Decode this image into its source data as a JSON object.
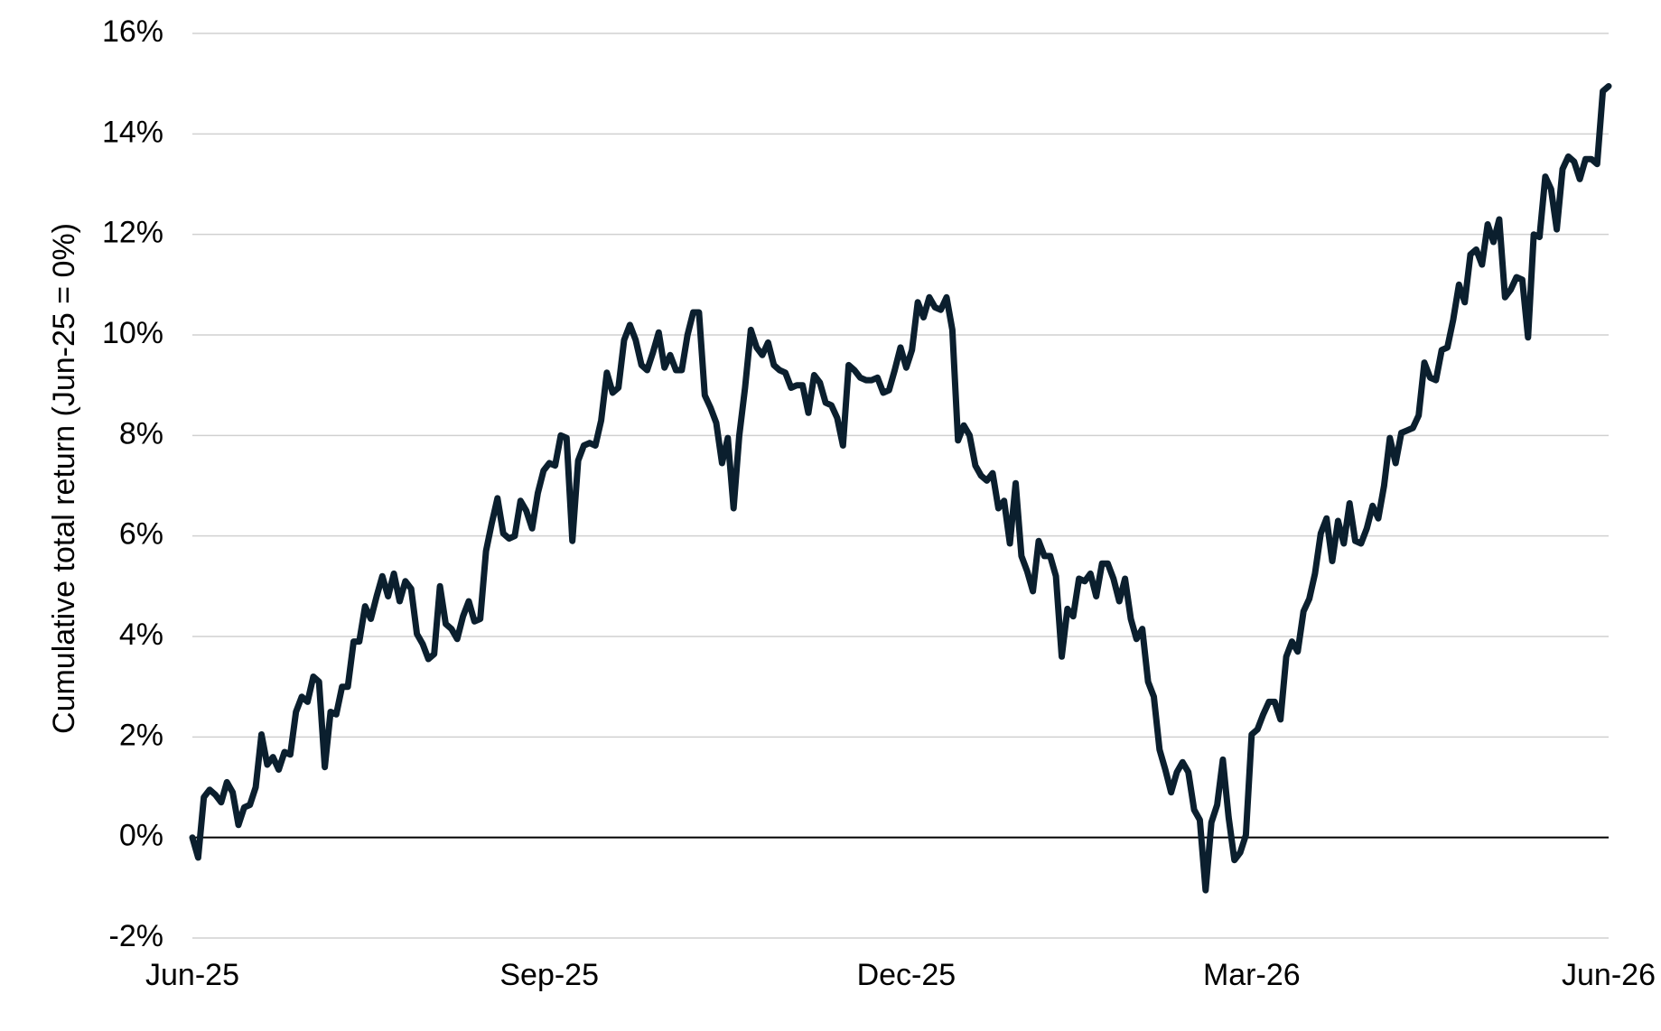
{
  "chart_data": {
    "type": "line",
    "y_label": "Cumulative total return (Jun-25 = 0%)",
    "x": [
      "Jun-25",
      null,
      null,
      null,
      null,
      null,
      null,
      null,
      null,
      null,
      null,
      null,
      null,
      null,
      null,
      null,
      null,
      null,
      null,
      null,
      null,
      null,
      null,
      null,
      null,
      null,
      null,
      null,
      null,
      null,
      null,
      null,
      null,
      null,
      null,
      null,
      null,
      null,
      null,
      null,
      null,
      null,
      null,
      null,
      null,
      null,
      null,
      null,
      null,
      null,
      null,
      null,
      null,
      null,
      null,
      null,
      null,
      null,
      null,
      null,
      null,
      null,
      "Sep-25",
      null,
      null,
      null,
      null,
      null,
      null,
      null,
      null,
      null,
      null,
      null,
      null,
      null,
      null,
      null,
      null,
      null,
      null,
      null,
      null,
      null,
      null,
      null,
      null,
      null,
      null,
      null,
      null,
      null,
      null,
      null,
      null,
      null,
      null,
      null,
      null,
      null,
      null,
      null,
      null,
      null,
      null,
      null,
      null,
      null,
      null,
      null,
      null,
      null,
      null,
      null,
      null,
      null,
      null,
      null,
      null,
      null,
      null,
      null,
      null,
      null,
      "Dec-25",
      null,
      null,
      null,
      null,
      null,
      null,
      null,
      null,
      null,
      null,
      null,
      null,
      null,
      null,
      null,
      null,
      null,
      null,
      null,
      null,
      null,
      null,
      null,
      null,
      null,
      null,
      null,
      null,
      null,
      null,
      null,
      null,
      null,
      null,
      null,
      null,
      null,
      null,
      null,
      null,
      null,
      null,
      null,
      null,
      null,
      null,
      null,
      null,
      null,
      null,
      null,
      null,
      null,
      null,
      null,
      null,
      null,
      null,
      null,
      "Mar-26",
      null,
      null,
      null,
      null,
      null,
      null,
      null,
      null,
      null,
      null,
      null,
      null,
      null,
      null,
      null,
      null,
      null,
      null,
      null,
      null,
      null,
      null,
      null,
      null,
      null,
      null,
      null,
      null,
      null,
      null,
      null,
      null,
      null,
      null,
      null,
      null,
      null,
      null,
      null,
      null,
      null,
      null,
      null,
      null,
      null,
      null,
      null,
      null,
      null,
      null,
      null,
      null,
      null,
      null,
      null,
      null,
      null,
      null,
      null,
      null,
      null,
      "Jun-26"
    ],
    "series": [
      {
        "name": "Cumulative total return",
        "color": "#0b1f2e",
        "values": [
          0,
          -0.4,
          0.8,
          0.95,
          0.85,
          0.7,
          1.1,
          0.9,
          0.25,
          0.6,
          0.65,
          1.0,
          2.05,
          1.45,
          1.6,
          1.35,
          1.7,
          1.65,
          2.5,
          2.8,
          2.7,
          3.2,
          3.1,
          1.4,
          2.5,
          2.45,
          3.0,
          3.0,
          3.9,
          3.9,
          4.6,
          4.35,
          4.8,
          5.2,
          4.8,
          5.25,
          4.7,
          5.1,
          4.95,
          4.05,
          3.85,
          3.55,
          3.65,
          5.0,
          4.25,
          4.15,
          3.95,
          4.4,
          4.7,
          4.3,
          4.35,
          5.7,
          6.25,
          6.75,
          6.05,
          5.95,
          6.0,
          6.7,
          6.5,
          6.15,
          6.85,
          7.3,
          7.45,
          7.4,
          8.0,
          7.95,
          5.9,
          7.5,
          7.8,
          7.85,
          7.8,
          8.3,
          9.25,
          8.85,
          8.95,
          9.9,
          10.2,
          9.9,
          9.4,
          9.3,
          9.65,
          10.05,
          9.35,
          9.6,
          9.3,
          9.3,
          10.0,
          10.45,
          10.45,
          8.8,
          8.55,
          8.25,
          7.45,
          7.95,
          6.55,
          8.0,
          8.95,
          10.1,
          9.75,
          9.6,
          9.85,
          9.4,
          9.3,
          9.25,
          8.95,
          9.0,
          9.0,
          8.45,
          9.2,
          9.05,
          8.65,
          8.6,
          8.35,
          7.8,
          9.4,
          9.3,
          9.15,
          9.1,
          9.1,
          9.15,
          8.85,
          8.9,
          9.3,
          9.75,
          9.35,
          9.7,
          10.65,
          10.35,
          10.75,
          10.55,
          10.5,
          10.75,
          10.1,
          7.9,
          8.2,
          8.0,
          7.4,
          7.2,
          7.1,
          7.25,
          6.55,
          6.7,
          5.85,
          7.05,
          5.6,
          5.3,
          4.9,
          5.9,
          5.6,
          5.6,
          5.2,
          3.6,
          4.55,
          4.4,
          5.15,
          5.1,
          5.25,
          4.8,
          5.45,
          5.45,
          5.15,
          4.7,
          5.15,
          4.35,
          3.95,
          4.15,
          3.1,
          2.8,
          1.75,
          1.35,
          0.9,
          1.3,
          1.5,
          1.3,
          0.55,
          0.35,
          -1.05,
          0.3,
          0.65,
          1.55,
          0.4,
          -0.45,
          -0.3,
          0.05,
          2.05,
          2.15,
          2.45,
          2.7,
          2.7,
          2.35,
          3.6,
          3.9,
          3.7,
          4.5,
          4.75,
          5.25,
          6.05,
          6.35,
          5.5,
          6.3,
          5.85,
          6.65,
          5.9,
          5.85,
          6.15,
          6.6,
          6.35,
          7.0,
          7.95,
          7.45,
          8.05,
          8.1,
          8.15,
          8.4,
          9.45,
          9.15,
          9.1,
          9.7,
          9.75,
          10.3,
          11.0,
          10.65,
          11.6,
          11.7,
          11.4,
          12.2,
          11.85,
          12.3,
          10.75,
          10.9,
          11.15,
          11.1,
          9.95,
          12.0,
          11.95,
          13.15,
          12.9,
          12.1,
          13.3,
          13.55,
          13.45,
          13.1,
          13.5,
          13.5,
          13.4,
          14.85,
          14.95
        ]
      }
    ],
    "ylim": [
      -2,
      16
    ],
    "yticks": [
      {
        "value": -2,
        "label": "-2%"
      },
      {
        "value": 0,
        "label": "0%"
      },
      {
        "value": 2,
        "label": "2%"
      },
      {
        "value": 4,
        "label": "4%"
      },
      {
        "value": 6,
        "label": "6%"
      },
      {
        "value": 8,
        "label": "8%"
      },
      {
        "value": 10,
        "label": "10%"
      },
      {
        "value": 12,
        "label": "12%"
      },
      {
        "value": 14,
        "label": "14%"
      },
      {
        "value": 16,
        "label": "16%"
      }
    ],
    "grid": true
  }
}
